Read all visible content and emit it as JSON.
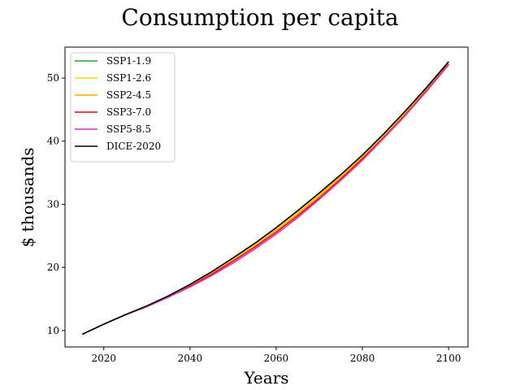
{
  "chart_data": {
    "type": "line",
    "title": "Consumption per capita",
    "xlabel": "Years",
    "ylabel": "$ thousands",
    "xlim": [
      2011,
      2104.5
    ],
    "ylim": [
      7.4,
      54.9
    ],
    "xticks": [
      2020,
      2040,
      2060,
      2080,
      2100
    ],
    "yticks": [
      10,
      20,
      30,
      40,
      50
    ],
    "grid": false,
    "legend_position": "top-left",
    "x": [
      2015,
      2020,
      2025,
      2030,
      2035,
      2040,
      2045,
      2050,
      2055,
      2060,
      2065,
      2070,
      2075,
      2080,
      2085,
      2090,
      2095,
      2100
    ],
    "series": [
      {
        "name": "SSP1-1.9",
        "color": "#2ca02c",
        "values": [
          9.4,
          11.0,
          12.5,
          13.9,
          15.4,
          17.2,
          19.2,
          21.4,
          23.7,
          26.2,
          28.8,
          31.6,
          34.5,
          37.6,
          41.0,
          44.6,
          48.5,
          52.6
        ]
      },
      {
        "name": "SSP1-2.6",
        "color": "#ffd700",
        "values": [
          9.4,
          11.0,
          12.5,
          13.9,
          15.4,
          17.2,
          19.2,
          21.4,
          23.7,
          26.2,
          28.8,
          31.6,
          34.5,
          37.6,
          41.0,
          44.6,
          48.5,
          52.6
        ]
      },
      {
        "name": "SSP2-4.5",
        "color": "#ffa500",
        "values": [
          9.4,
          11.0,
          12.5,
          13.9,
          15.4,
          17.1,
          19.0,
          21.1,
          23.4,
          25.9,
          28.5,
          31.3,
          34.3,
          37.4,
          40.8,
          44.4,
          48.3,
          52.4
        ]
      },
      {
        "name": "SSP3-7.0",
        "color": "#ff0000",
        "values": [
          9.4,
          11.0,
          12.5,
          13.8,
          15.3,
          17.0,
          18.9,
          21.0,
          23.2,
          25.6,
          28.2,
          31.0,
          34.0,
          37.2,
          40.6,
          44.2,
          48.1,
          52.2
        ]
      },
      {
        "name": "SSP5-8.5",
        "color": "#cc33cc",
        "values": [
          9.4,
          11.0,
          12.5,
          13.8,
          15.3,
          16.9,
          18.7,
          20.7,
          22.9,
          25.3,
          27.9,
          30.8,
          33.8,
          37.0,
          40.5,
          44.1,
          48.0,
          52.1
        ]
      },
      {
        "name": "DICE-2020",
        "color": "#000000",
        "values": [
          9.4,
          11.0,
          12.5,
          13.9,
          15.5,
          17.3,
          19.3,
          21.5,
          23.8,
          26.3,
          29.0,
          31.8,
          34.7,
          37.8,
          41.2,
          44.8,
          48.6,
          52.6
        ]
      }
    ]
  }
}
